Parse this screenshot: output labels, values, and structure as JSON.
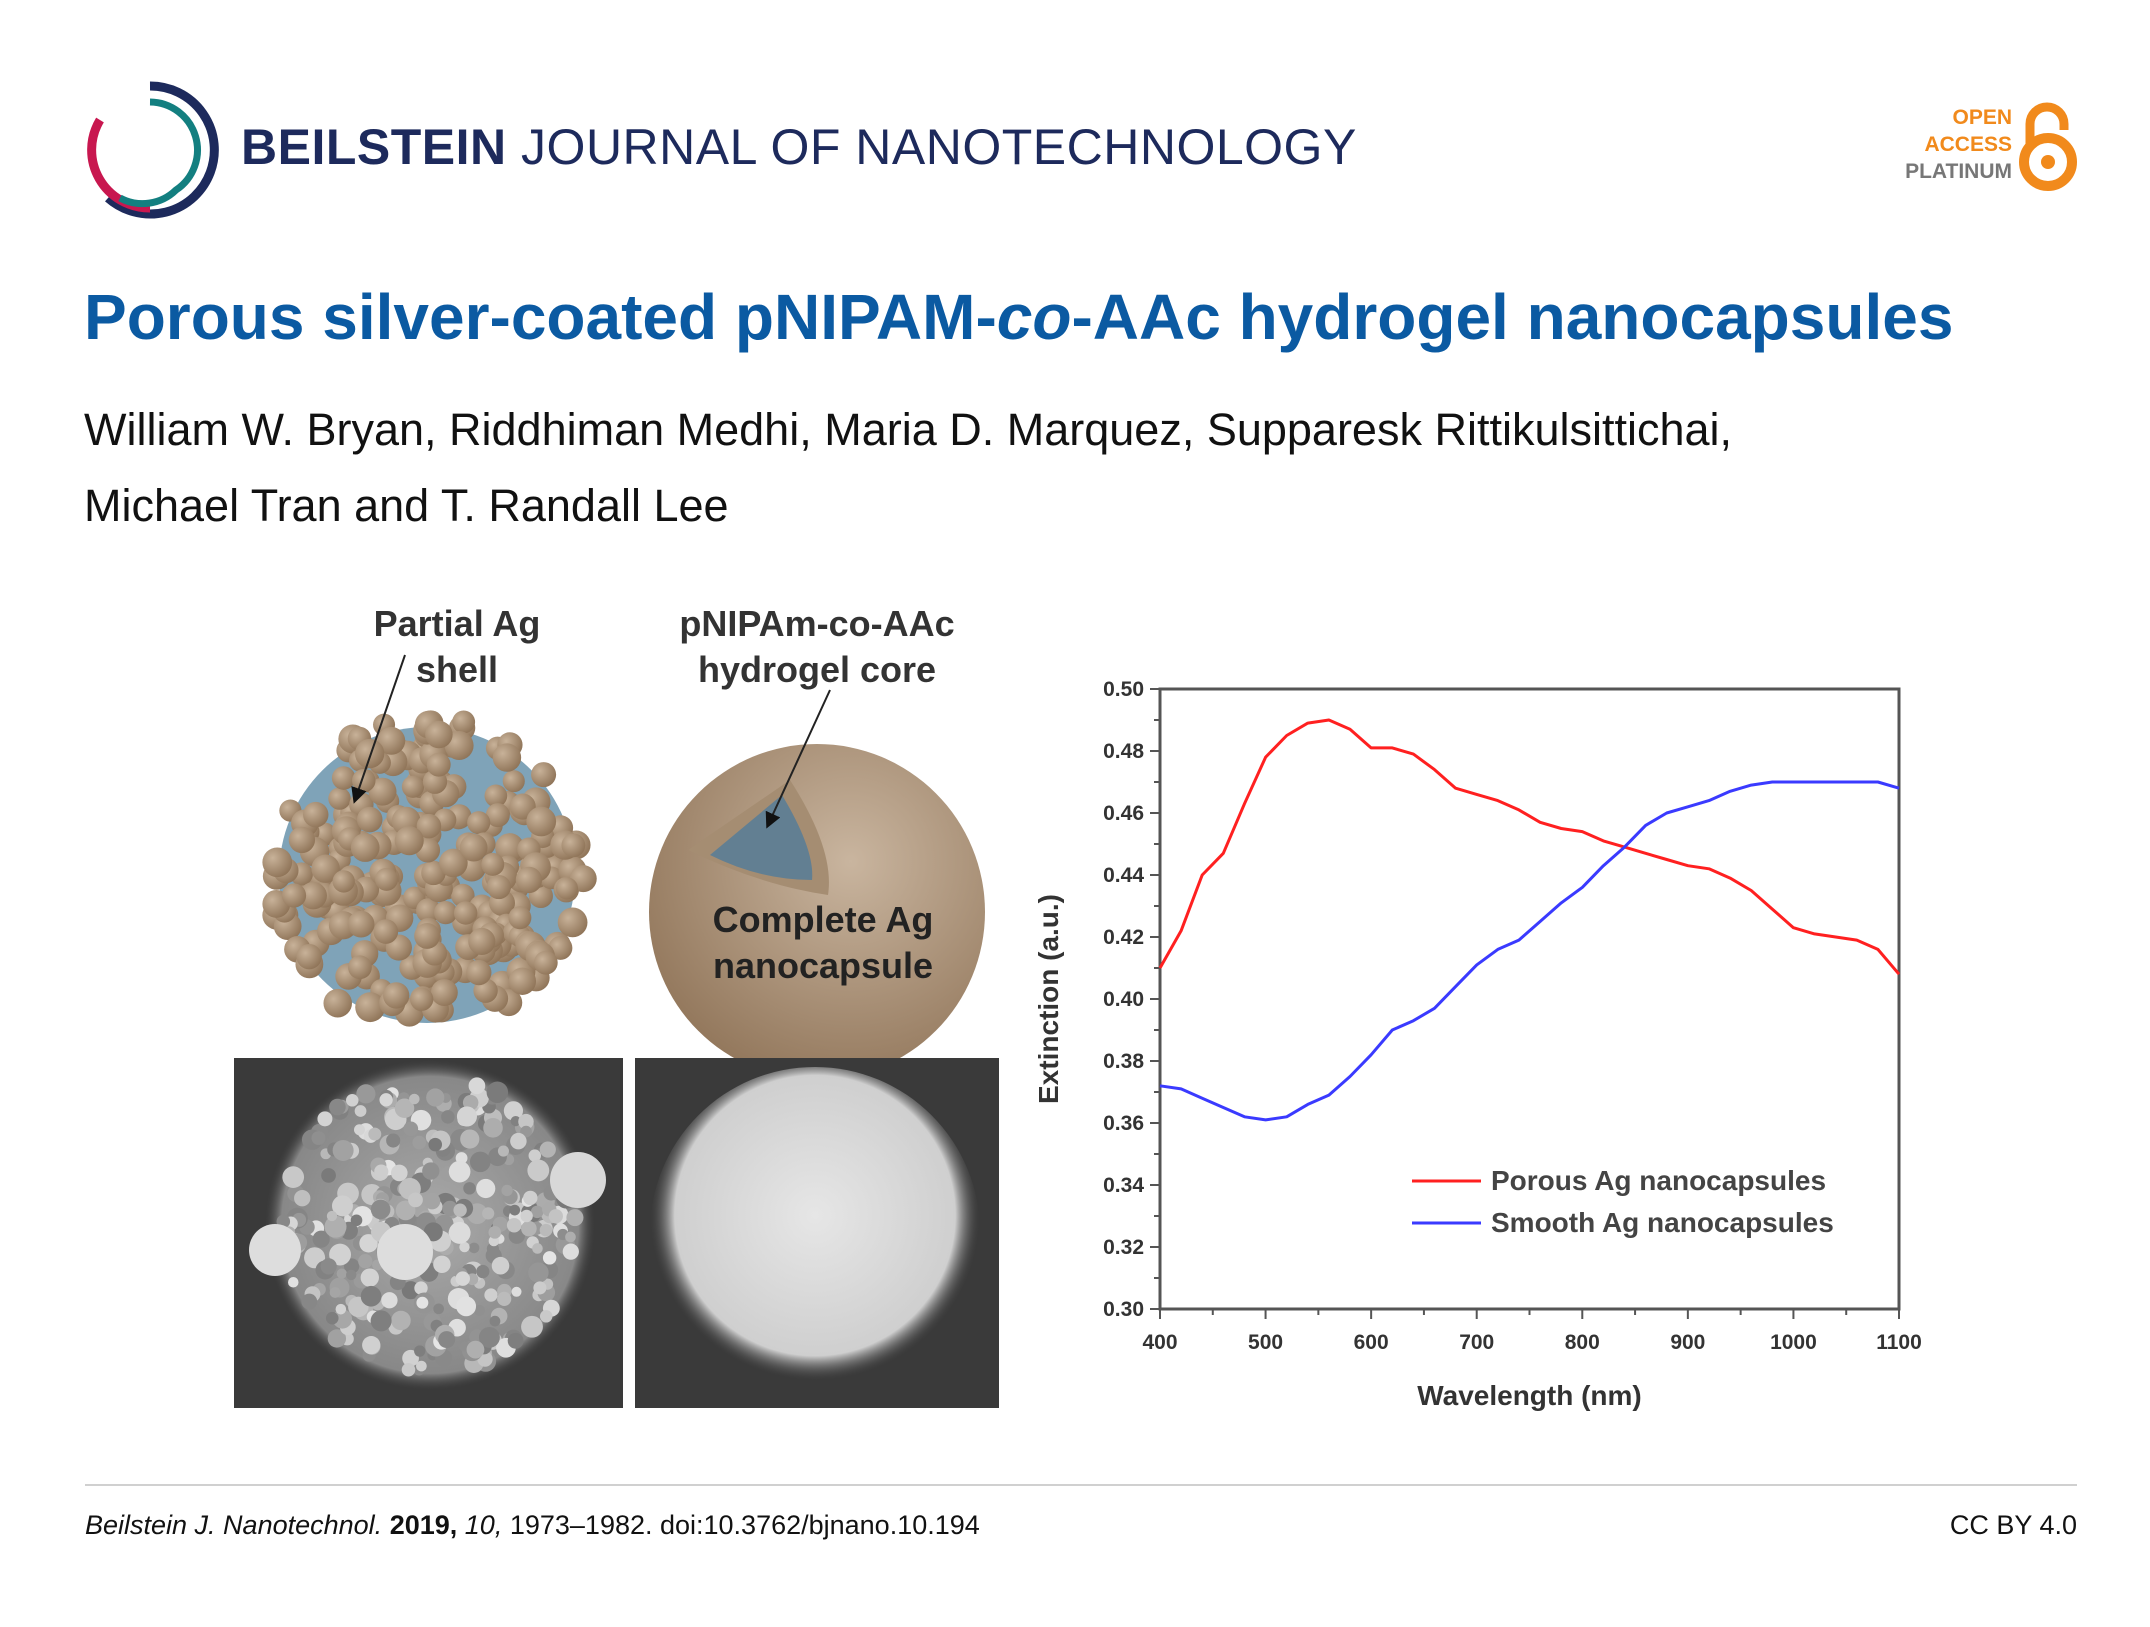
{
  "header": {
    "journal_bold": "BEILSTEIN",
    "journal_rest": "JOURNAL OF NANOTECHNOLOGY",
    "badge": {
      "line1": "OPEN",
      "line2": "ACCESS",
      "line3": "PLATINUM",
      "icon": "open-access-lock-icon",
      "color": "#f18a1c"
    },
    "logo_icon": "beilstein-circle-logo"
  },
  "article": {
    "title_pre": "Porous silver-coated pNIPAM-",
    "title_italic": "co",
    "title_post": "-AAc hydrogel nanocapsules",
    "authors_line1": "William W. Bryan, Riddhiman Medhi, Maria D. Marquez, Supparesk Rittikulsittichai,",
    "authors_line2": "Michael Tran and T. Randall Lee",
    "title_color": "#0b5aa2"
  },
  "figure": {
    "label_partial_1": "Partial Ag",
    "label_partial_2": "shell",
    "label_core_1": "pNIPAm-co-AAc",
    "label_core_2": "hydrogel core",
    "label_complete_1": "Complete Ag",
    "label_complete_2": "nanocapsule"
  },
  "chart_data": {
    "type": "line",
    "xlabel": "Wavelength (nm)",
    "ylabel": "Extinction (a.u.)",
    "xlim": [
      400,
      1100
    ],
    "ylim": [
      0.3,
      0.5
    ],
    "xticks": [
      "400",
      "500",
      "600",
      "700",
      "800",
      "900",
      "1000",
      "1100"
    ],
    "yticks": [
      "0.30",
      "0.32",
      "0.34",
      "0.36",
      "0.38",
      "0.40",
      "0.42",
      "0.44",
      "0.46",
      "0.48",
      "0.50"
    ],
    "grid": false,
    "legend_position": "lower-right",
    "x": [
      400,
      420,
      440,
      460,
      480,
      500,
      520,
      540,
      560,
      580,
      600,
      620,
      640,
      660,
      680,
      700,
      720,
      740,
      760,
      780,
      800,
      820,
      840,
      860,
      880,
      900,
      920,
      940,
      960,
      980,
      1000,
      1020,
      1040,
      1060,
      1080,
      1100
    ],
    "series": [
      {
        "name": "Porous Ag nanocapsules",
        "color": "#ff2020",
        "values": [
          0.41,
          0.422,
          0.44,
          0.447,
          0.463,
          0.478,
          0.485,
          0.489,
          0.49,
          0.487,
          0.481,
          0.481,
          0.479,
          0.474,
          0.468,
          0.466,
          0.464,
          0.461,
          0.457,
          0.455,
          0.454,
          0.451,
          0.449,
          0.447,
          0.445,
          0.443,
          0.442,
          0.439,
          0.435,
          0.429,
          0.423,
          0.421,
          0.42,
          0.419,
          0.416,
          0.408
        ]
      },
      {
        "name": "Smooth Ag nanocapsules",
        "color": "#3a3aff",
        "values": [
          0.372,
          0.371,
          0.368,
          0.365,
          0.362,
          0.361,
          0.362,
          0.366,
          0.369,
          0.375,
          0.382,
          0.39,
          0.393,
          0.397,
          0.404,
          0.411,
          0.416,
          0.419,
          0.425,
          0.431,
          0.436,
          0.443,
          0.449,
          0.456,
          0.46,
          0.462,
          0.464,
          0.467,
          0.469,
          0.47,
          0.47,
          0.47,
          0.47,
          0.47,
          0.47,
          0.468
        ]
      }
    ]
  },
  "footer": {
    "journal_abbrev": "Beilstein J. Nanotechnol.",
    "year": "2019,",
    "volume": "10,",
    "pages_doi": "1973–1982. doi:10.3762/bjnano.10.194",
    "license": "CC BY 4.0"
  }
}
